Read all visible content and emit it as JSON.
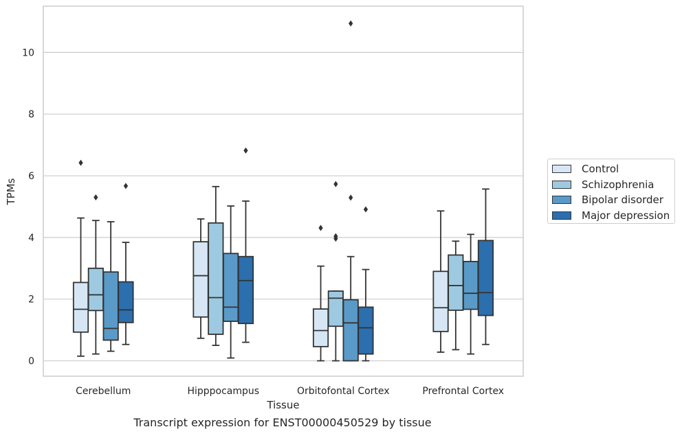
{
  "chart_data": {
    "type": "box",
    "xlabel": "Tissue",
    "ylabel": "TPMs",
    "ylim": [
      -0.5,
      11.5
    ],
    "yticks": [
      0,
      2,
      4,
      6,
      8,
      10
    ],
    "grid": "horizontal",
    "legend_position": "right",
    "categories": [
      "Cerebellum",
      "Hipppocampus",
      "Orbitofontal Cortex",
      "Prefrontal Cortex"
    ],
    "series": [
      {
        "name": "Control",
        "color": "#d6e6f4",
        "boxes": [
          {
            "whislo": 0.15,
            "q1": 0.93,
            "med": 1.67,
            "q3": 2.54,
            "whishi": 4.63,
            "fliers": [
              6.42
            ]
          },
          {
            "whislo": 0.73,
            "q1": 1.42,
            "med": 2.76,
            "q3": 3.86,
            "whishi": 4.6,
            "fliers": []
          },
          {
            "whislo": 0.0,
            "q1": 0.46,
            "med": 0.98,
            "q3": 1.68,
            "whishi": 3.07,
            "fliers": [
              4.31
            ]
          },
          {
            "whislo": 0.28,
            "q1": 0.95,
            "med": 1.72,
            "q3": 2.9,
            "whishi": 4.86,
            "fliers": []
          }
        ]
      },
      {
        "name": "Schizophrenia",
        "color": "#9ecae1",
        "boxes": [
          {
            "whislo": 0.22,
            "q1": 1.63,
            "med": 2.14,
            "q3": 3.0,
            "whishi": 4.55,
            "fliers": [
              5.3
            ]
          },
          {
            "whislo": 0.5,
            "q1": 0.86,
            "med": 2.05,
            "q3": 4.47,
            "whishi": 5.65,
            "fliers": []
          },
          {
            "whislo": 0.0,
            "q1": 1.12,
            "med": 2.03,
            "q3": 2.26,
            "whishi": 2.26,
            "fliers": [
              5.73,
              4.04,
              3.96
            ]
          },
          {
            "whislo": 0.36,
            "q1": 1.64,
            "med": 2.44,
            "q3": 3.43,
            "whishi": 3.88,
            "fliers": []
          }
        ]
      },
      {
        "name": "Bipolar disorder",
        "color": "#5a9ac8",
        "boxes": [
          {
            "whislo": 0.31,
            "q1": 0.67,
            "med": 1.05,
            "q3": 2.88,
            "whishi": 4.51,
            "fliers": []
          },
          {
            "whislo": 0.09,
            "q1": 1.28,
            "med": 1.74,
            "q3": 3.48,
            "whishi": 5.02,
            "fliers": []
          },
          {
            "whislo": 0.0,
            "q1": 0.0,
            "med": 1.23,
            "q3": 1.98,
            "whishi": 3.38,
            "fliers": [
              10.94,
              5.29
            ]
          },
          {
            "whislo": 0.22,
            "q1": 1.67,
            "med": 2.19,
            "q3": 3.22,
            "whishi": 4.1,
            "fliers": []
          }
        ]
      },
      {
        "name": "Major depression",
        "color": "#2c6fae",
        "boxes": [
          {
            "whislo": 0.53,
            "q1": 1.24,
            "med": 1.65,
            "q3": 2.56,
            "whishi": 3.84,
            "fliers": [
              5.67
            ]
          },
          {
            "whislo": 0.6,
            "q1": 1.21,
            "med": 2.6,
            "q3": 3.38,
            "whishi": 5.18,
            "fliers": [
              6.82
            ]
          },
          {
            "whislo": 0.0,
            "q1": 0.22,
            "med": 1.07,
            "q3": 1.74,
            "whishi": 2.96,
            "fliers": [
              4.91
            ]
          },
          {
            "whislo": 0.53,
            "q1": 1.47,
            "med": 2.21,
            "q3": 3.9,
            "whishi": 5.57,
            "fliers": []
          }
        ]
      }
    ]
  },
  "caption": "Transcript expression for ENST00000450529 by tissue"
}
